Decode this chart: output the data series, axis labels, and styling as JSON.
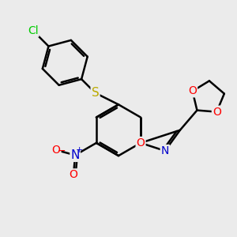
{
  "background_color": "#ebebeb",
  "atom_colors": {
    "C": "#000000",
    "N": "#0000cc",
    "O": "#ff0000",
    "S": "#bbaa00",
    "Cl": "#00cc00"
  },
  "bond_color": "#000000",
  "bond_width": 1.8,
  "figsize": [
    3.0,
    3.0
  ],
  "dpi": 100
}
